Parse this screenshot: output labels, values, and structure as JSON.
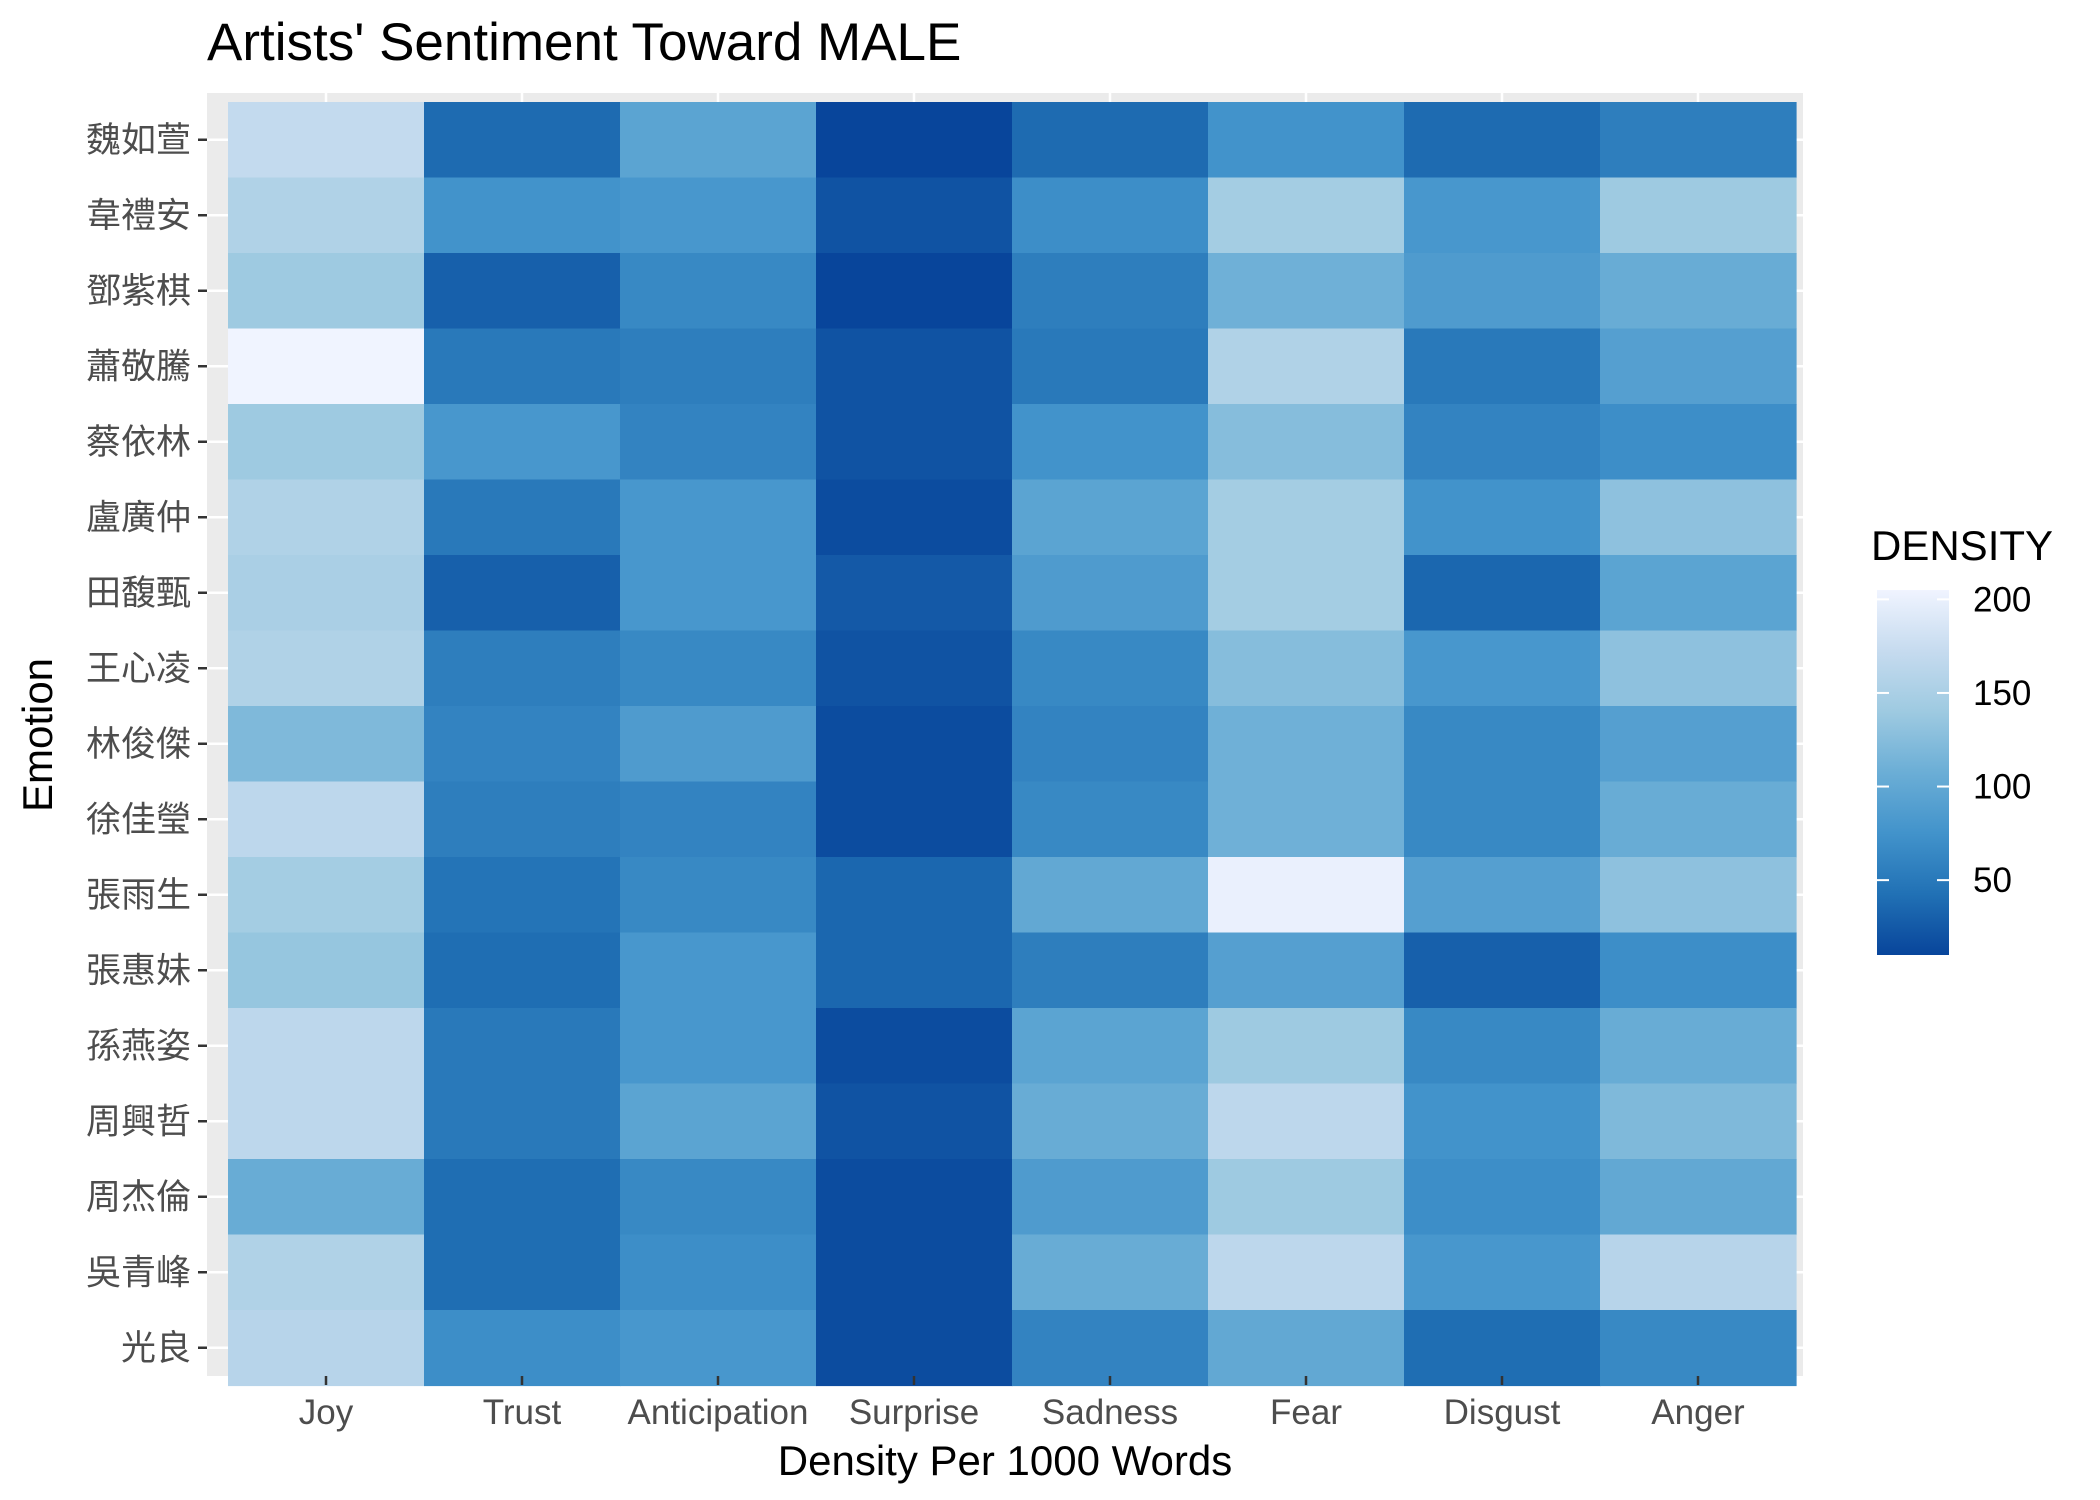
{
  "chart_data": {
    "type": "heatmap",
    "title": "Artists' Sentiment Toward MALE",
    "xlabel": "Density Per 1000 Words",
    "ylabel": "Emotion",
    "x_categories": [
      "Joy",
      "Trust",
      "Anticipation",
      "Surprise",
      "Sadness",
      "Fear",
      "Disgust",
      "Anger"
    ],
    "y_categories": [
      "魏如萱",
      "韋禮安",
      "鄧紫棋",
      "蕭敬騰",
      "蔡依林",
      "盧廣仲",
      "田馥甄",
      "王心凌",
      "林俊傑",
      "徐佳瑩",
      "張雨生",
      "張惠妹",
      "孫燕姿",
      "周興哲",
      "周杰倫",
      "吳青峰",
      "光良"
    ],
    "values": [
      [
        170,
        38,
        95,
        10,
        38,
        75,
        38,
        55
      ],
      [
        155,
        75,
        80,
        20,
        70,
        145,
        80,
        140
      ],
      [
        140,
        30,
        65,
        10,
        55,
        110,
        85,
        105
      ],
      [
        205,
        50,
        55,
        20,
        50,
        155,
        50,
        90
      ],
      [
        140,
        80,
        60,
        20,
        75,
        125,
        60,
        70
      ],
      [
        155,
        50,
        80,
        15,
        95,
        145,
        75,
        130
      ],
      [
        150,
        30,
        80,
        25,
        85,
        145,
        35,
        95
      ],
      [
        155,
        55,
        65,
        20,
        65,
        125,
        80,
        130
      ],
      [
        120,
        60,
        85,
        15,
        60,
        110,
        65,
        90
      ],
      [
        165,
        55,
        60,
        15,
        65,
        110,
        65,
        105
      ],
      [
        145,
        45,
        65,
        35,
        100,
        200,
        90,
        130
      ],
      [
        135,
        40,
        80,
        35,
        55,
        90,
        30,
        70
      ],
      [
        165,
        50,
        80,
        15,
        95,
        140,
        65,
        105
      ],
      [
        165,
        50,
        95,
        20,
        105,
        165,
        75,
        120
      ],
      [
        105,
        40,
        65,
        15,
        85,
        140,
        70,
        100
      ],
      [
        155,
        40,
        70,
        15,
        105,
        165,
        80,
        160
      ],
      [
        160,
        70,
        80,
        15,
        60,
        100,
        40,
        65
      ]
    ],
    "legend": {
      "title": "DENSITY",
      "ticks": [
        50,
        100,
        150,
        200
      ],
      "range": [
        10,
        205
      ],
      "position": "right"
    },
    "color_scale": [
      "#08459b",
      "#2171b5",
      "#4293cb",
      "#6baed6",
      "#9ecae1",
      "#c6dbef",
      "#f0f4ff"
    ],
    "panel_background": "#ebebeb",
    "grid": true
  }
}
